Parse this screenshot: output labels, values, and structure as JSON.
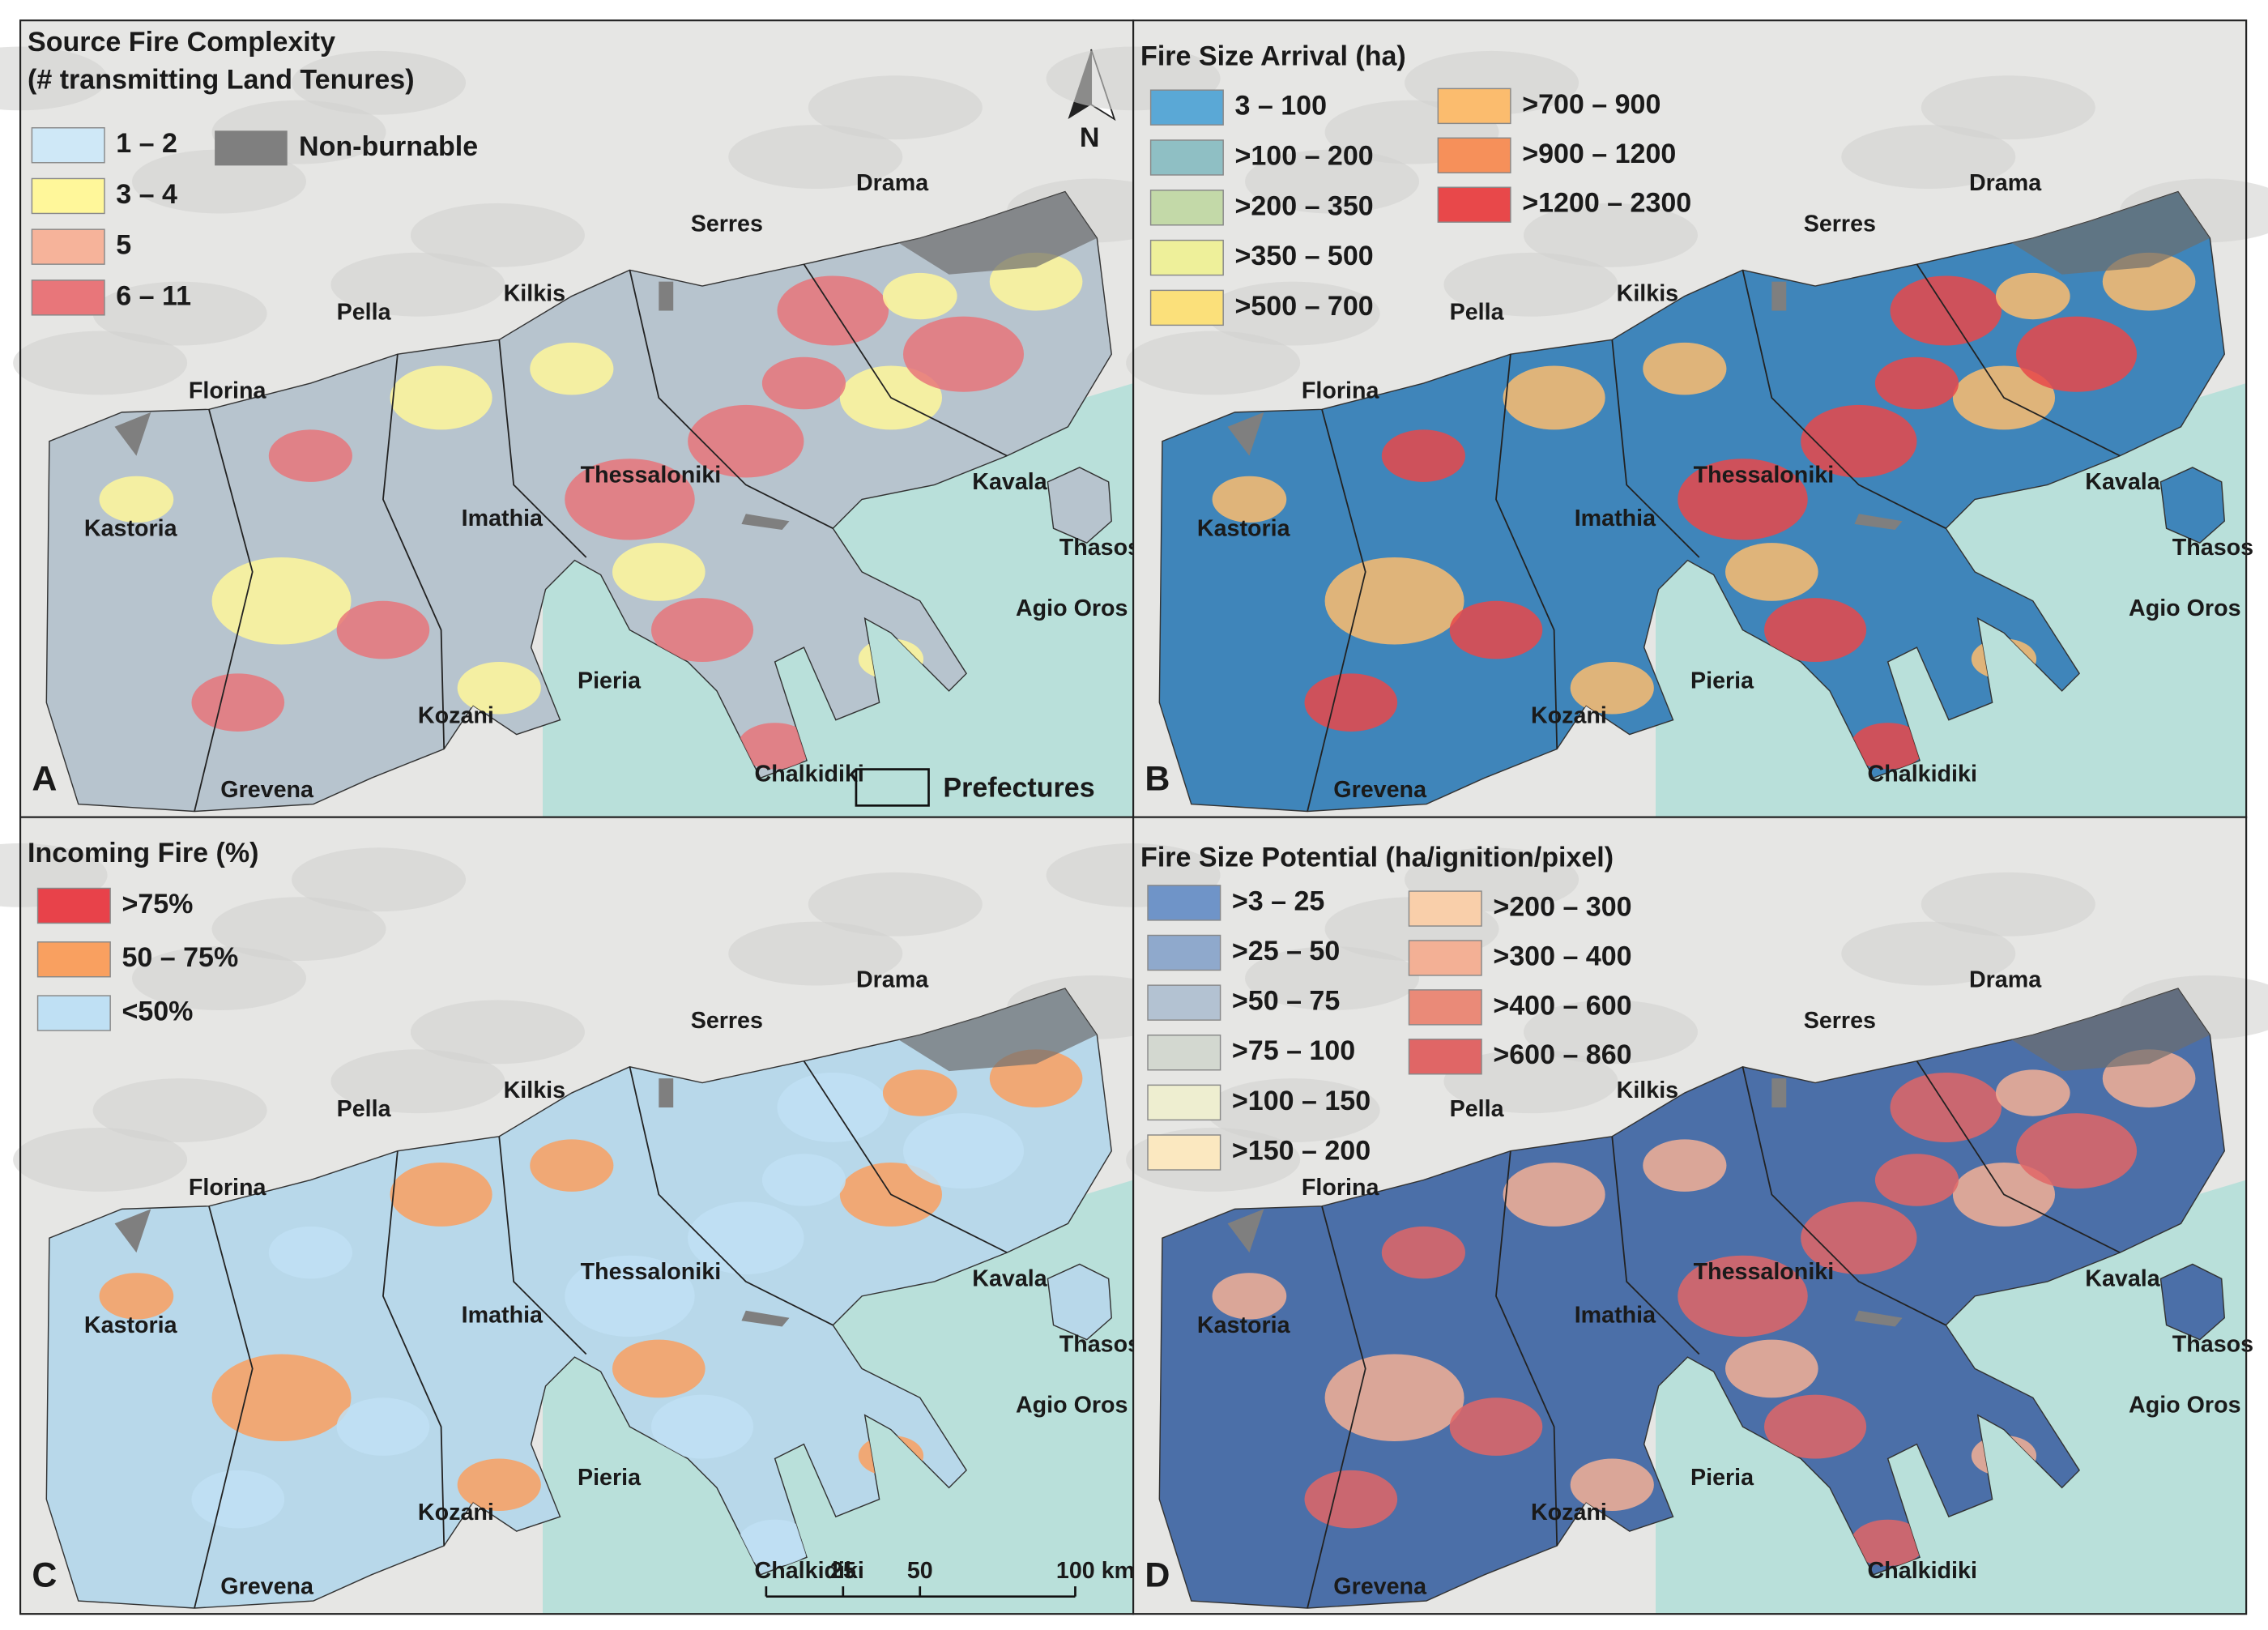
{
  "panels": [
    {
      "letter": "A",
      "legend_title": [
        "Source Fire Complexity",
        "(# transmitting Land Tenures)"
      ],
      "legend": [
        {
          "label": "1 – 2",
          "color": "#cfe8f7"
        },
        {
          "label": "3 – 4",
          "color": "#fff79a"
        },
        {
          "label": "5",
          "color": "#f6b39a"
        },
        {
          "label": "6 – 11",
          "color": "#e8767a"
        }
      ]
    },
    {
      "letter": "B",
      "legend_title": [
        "Fire Size Arrival (ha)"
      ],
      "legend": [
        {
          "label": "3 – 100",
          "color": "#5aa8d6"
        },
        {
          "label": ">100 – 200",
          "color": "#8fbfc4"
        },
        {
          "label": ">200 – 350",
          "color": "#c3d9a8"
        },
        {
          "label": ">350 – 500",
          "color": "#eef09a"
        },
        {
          "label": ">500 – 700",
          "color": "#fbe07a"
        },
        {
          "label": ">700 – 900",
          "color": "#fbbc6e"
        },
        {
          "label": ">900 – 1200",
          "color": "#f6905a"
        },
        {
          "label": ">1200 – 2300",
          "color": "#e8484a"
        }
      ]
    },
    {
      "letter": "C",
      "legend_title": [
        "Incoming Fire (%)"
      ],
      "legend": [
        {
          "label": ">75%",
          "color": "#e8424a"
        },
        {
          "label": "50 – 75%",
          "color": "#f9a060"
        },
        {
          "label": "<50%",
          "color": "#bfe0f4"
        }
      ]
    },
    {
      "letter": "D",
      "legend_title": [
        "Fire Size Potential (ha/ignition/pixel)"
      ],
      "legend": [
        {
          "label": ">3 – 25",
          "color": "#6f94c8"
        },
        {
          "label": ">25 – 50",
          "color": "#8fa9cc"
        },
        {
          "label": ">50 – 75",
          "color": "#b3c2d2"
        },
        {
          "label": ">75 – 100",
          "color": "#d3d8d0"
        },
        {
          "label": ">100 – 150",
          "color": "#eeeed0"
        },
        {
          "label": ">150 – 200",
          "color": "#fbe8c0"
        },
        {
          "label": ">200 – 300",
          "color": "#f9cfaa"
        },
        {
          "label": ">300 – 400",
          "color": "#f3b095"
        },
        {
          "label": ">400 – 600",
          "color": "#ea8a78"
        },
        {
          "label": ">600 – 860",
          "color": "#e06666"
        }
      ]
    }
  ],
  "places": [
    "Drama",
    "Serres",
    "Kilkis",
    "Pella",
    "Florina",
    "Kastoria",
    "Imathia",
    "Thessaloniki",
    "Kavala",
    "Thasos",
    "Agio Oros",
    "Pieria",
    "Kozani",
    "Chalkidiki",
    "Grevena"
  ],
  "non_burnable": {
    "label": "Non-burnable",
    "color": "#7f7f7f"
  },
  "prefectures": "Prefectures",
  "north": "N",
  "scale_bar": [
    "25",
    "50",
    "100 km"
  ]
}
